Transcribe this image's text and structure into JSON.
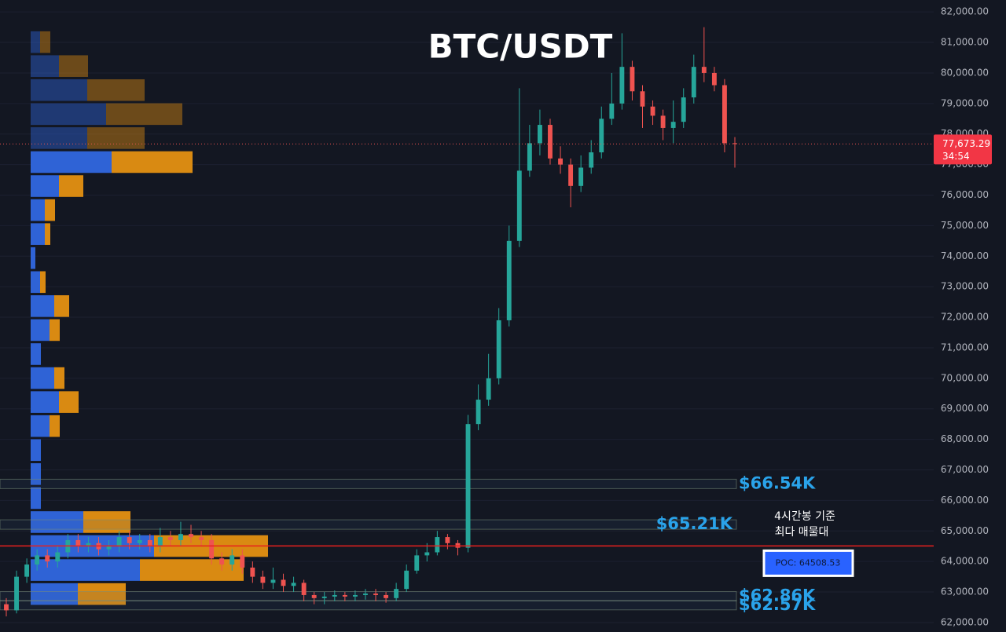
{
  "chart_data": {
    "type": "candlestick",
    "title": "BTC/USDT",
    "up_color": "#26a69a",
    "down_color": "#ef5350",
    "grid": true,
    "ylim": [
      61690,
      82390
    ],
    "yticks": [
      {
        "value": 62000,
        "label": "62,000.00"
      },
      {
        "value": 63000,
        "label": "63,000.00"
      },
      {
        "value": 64000,
        "label": "64,000.00"
      },
      {
        "value": 65000,
        "label": "65,000.00"
      },
      {
        "value": 66000,
        "label": "66,000.00"
      },
      {
        "value": 67000,
        "label": "67,000.00"
      },
      {
        "value": 68000,
        "label": "68,000.00"
      },
      {
        "value": 69000,
        "label": "69,000.00"
      },
      {
        "value": 70000,
        "label": "70,000.00"
      },
      {
        "value": 71000,
        "label": "71,000.00"
      },
      {
        "value": 72000,
        "label": "72,000.00"
      },
      {
        "value": 73000,
        "label": "73,000.00"
      },
      {
        "value": 74000,
        "label": "74,000.00"
      },
      {
        "value": 75000,
        "label": "75,000.00"
      },
      {
        "value": 76000,
        "label": "76,000.00"
      },
      {
        "value": 77000,
        "label": "77,000.00"
      },
      {
        "value": 78000,
        "label": "78,000.00"
      },
      {
        "value": 79000,
        "label": "79,000.00"
      },
      {
        "value": 80000,
        "label": "80,000.00"
      },
      {
        "value": 81000,
        "label": "81,000.00"
      },
      {
        "value": 82000,
        "label": "82,000.00"
      }
    ],
    "open": [
      62600,
      62400,
      63500,
      63900,
      64200,
      64000,
      64300,
      64700,
      64500,
      64600,
      64400,
      64500,
      64800,
      64600,
      64700,
      64500,
      64800,
      64700,
      64900,
      64800,
      64700,
      64100,
      63900,
      64200,
      63800,
      63500,
      63300,
      63400,
      63200,
      63300,
      62900,
      62800,
      62850,
      62900,
      62850,
      62900,
      62950,
      62900,
      62800,
      63100,
      63700,
      64200,
      64300,
      64800,
      64600,
      64450,
      68500,
      69300,
      70000,
      71900,
      74500,
      76800,
      77700,
      78300,
      77200,
      77000,
      76300,
      76900,
      77400,
      78500,
      79000,
      80200,
      79400,
      78900,
      78600,
      78200,
      78400,
      79200,
      80200,
      80000,
      79600,
      77700
    ],
    "high": [
      62800,
      63700,
      64100,
      64400,
      64400,
      64500,
      64900,
      64900,
      64800,
      64800,
      64700,
      65000,
      65000,
      64900,
      64900,
      65100,
      65000,
      65300,
      65200,
      65000,
      64900,
      64300,
      64400,
      64400,
      64000,
      63700,
      63800,
      63600,
      63500,
      63400,
      63000,
      63000,
      63050,
      63000,
      63050,
      63100,
      63100,
      63000,
      63300,
      63900,
      64400,
      64600,
      65000,
      64900,
      64700,
      68800,
      69800,
      70800,
      72300,
      75000,
      79500,
      78300,
      78800,
      78500,
      77600,
      77200,
      77300,
      77800,
      78900,
      80000,
      81300,
      80400,
      79600,
      79100,
      78800,
      79100,
      79500,
      80600,
      81500,
      80200,
      79800,
      77900
    ],
    "low": [
      62200,
      62300,
      63300,
      63700,
      63800,
      63800,
      64100,
      64300,
      64300,
      64200,
      64200,
      64300,
      64400,
      64400,
      64300,
      64300,
      64500,
      64500,
      64600,
      64500,
      63900,
      63700,
      63700,
      63600,
      63300,
      63100,
      63100,
      63000,
      63000,
      62700,
      62600,
      62600,
      62700,
      62700,
      62700,
      62750,
      62700,
      62650,
      62700,
      63000,
      63600,
      64000,
      64200,
      64400,
      64200,
      64300,
      68300,
      69100,
      69800,
      71700,
      74300,
      76600,
      77300,
      77000,
      76700,
      75600,
      76100,
      76700,
      77200,
      78300,
      78800,
      79100,
      78200,
      78300,
      77800,
      77700,
      78200,
      79000,
      79700,
      79400,
      77400,
      76900
    ],
    "close": [
      62400,
      63500,
      63900,
      64200,
      64000,
      64300,
      64700,
      64500,
      64600,
      64400,
      64500,
      64800,
      64600,
      64700,
      64500,
      64800,
      64700,
      64900,
      64800,
      64700,
      64100,
      63900,
      64200,
      63800,
      63500,
      63300,
      63400,
      63200,
      63300,
      62900,
      62800,
      62850,
      62900,
      62850,
      62900,
      62950,
      62900,
      62800,
      63100,
      63700,
      64200,
      64300,
      64800,
      64600,
      64450,
      68500,
      69300,
      70000,
      71900,
      74500,
      76800,
      77700,
      78300,
      77200,
      77000,
      76300,
      76900,
      77400,
      78500,
      79000,
      80200,
      79400,
      78900,
      78600,
      78200,
      78400,
      79200,
      80200,
      80000,
      79600,
      77700,
      77673.29
    ],
    "last_price": {
      "value": 77673.29,
      "label": "77,673.29"
    },
    "countdown": "34:54",
    "profile": {
      "bins": [
        62540,
        63326,
        64112,
        64898,
        65684,
        66470,
        67256,
        68042,
        68828,
        69614,
        70400,
        71186,
        71972,
        72758,
        73544,
        74330,
        75116,
        75902,
        76688,
        77474,
        78260,
        79046,
        79832,
        80618,
        81404
      ],
      "buy": [
        60,
        139,
        157,
        67,
        13,
        13,
        13,
        24,
        36,
        30,
        13,
        24,
        30,
        12,
        6,
        18,
        18,
        36,
        103,
        72,
        96,
        72,
        36,
        12
      ],
      "sell": [
        61,
        132,
        145,
        60,
        0,
        0,
        0,
        13,
        25,
        13,
        0,
        13,
        19,
        7,
        0,
        7,
        13,
        31,
        103,
        73,
        97,
        73,
        37,
        13
      ],
      "buy_color": "#2f63d6",
      "sell_color": "#d98a12",
      "value_area_high": 77474
    },
    "levels": [
      {
        "value": 66540,
        "label": "$66.54K"
      },
      {
        "value": 65210,
        "label": "$65.21K"
      },
      {
        "value": 62860,
        "label": "$62.86K"
      },
      {
        "value": 62570,
        "label": "$62.57K"
      }
    ],
    "poc": {
      "value": 64508.53,
      "label": "POC: 64508.53"
    },
    "annotation": [
      "4시간봉 기준",
      "최다 매물대"
    ]
  }
}
